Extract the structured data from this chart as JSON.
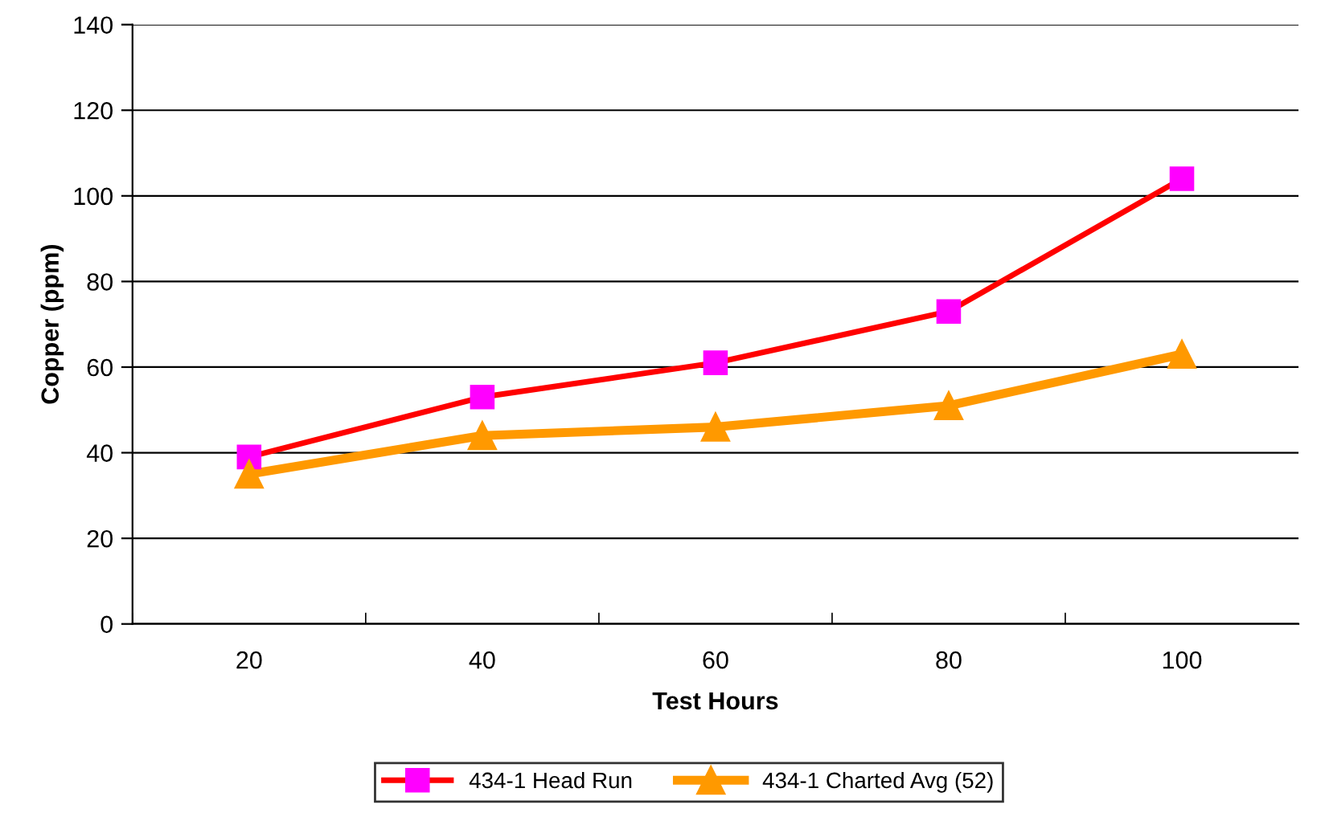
{
  "chart_data": {
    "type": "line",
    "xlabel": "Test Hours",
    "ylabel": "Copper (ppm)",
    "categories": [
      "20",
      "40",
      "60",
      "80",
      "100"
    ],
    "series": [
      {
        "name": "434-1 Head Run",
        "color": "#ff0000",
        "colors": [
          "#ff00ff",
          "#ff00ff",
          "#ff00ff",
          "#ff00ff",
          "#ff00ff"
        ],
        "marker": "square",
        "values": [
          39,
          53,
          61,
          73,
          104
        ]
      },
      {
        "name": "434-1 Charted Avg (52)",
        "color": "#ff9900",
        "marker": "triangle",
        "values": [
          35,
          44,
          46,
          51,
          63
        ]
      }
    ],
    "ylim": [
      0,
      140
    ],
    "yticks": [
      0,
      20,
      40,
      60,
      80,
      100,
      120,
      140
    ],
    "grid": "y",
    "legend": "bottom"
  }
}
